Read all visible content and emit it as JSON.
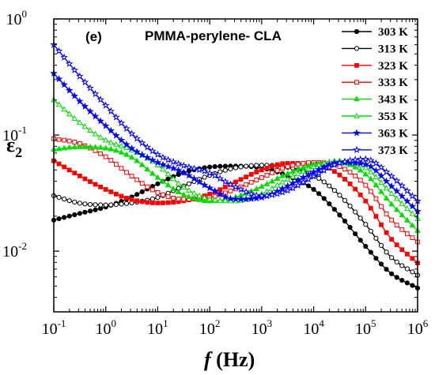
{
  "chart_data": {
    "type": "line",
    "panel_label": "(e)",
    "title": "PMMA-perylene- CLA",
    "xlabel_italic": "f",
    "xlabel_unit": " (Hz)",
    "ylabel_symbol": "ε",
    "ylabel_subscript": "2",
    "xscale": "log",
    "yscale": "log",
    "xlim": [
      0.1,
      1000000
    ],
    "ylim": [
      0.003,
      1
    ],
    "x_ticks": [
      {
        "base": "10",
        "exp": "-1",
        "value": 0.1
      },
      {
        "base": "10",
        "exp": "0",
        "value": 1
      },
      {
        "base": "10",
        "exp": "1",
        "value": 10
      },
      {
        "base": "10",
        "exp": "2",
        "value": 100
      },
      {
        "base": "10",
        "exp": "3",
        "value": 1000
      },
      {
        "base": "10",
        "exp": "4",
        "value": 10000
      },
      {
        "base": "10",
        "exp": "5",
        "value": 100000
      },
      {
        "base": "10",
        "exp": "6",
        "value": 1000000
      }
    ],
    "y_ticks": [
      {
        "base": "10",
        "exp": "-2",
        "value": 0.01
      },
      {
        "base": "10",
        "exp": "-1",
        "value": 0.1
      },
      {
        "base": "10",
        "exp": "0",
        "value": 1
      }
    ],
    "legend_position": "top-right",
    "grid": false,
    "series": [
      {
        "name": "303 K",
        "color": "#000000",
        "marker": "circle",
        "filled": true,
        "points": [
          [
            0.1,
            0.0185
          ],
          [
            0.3,
            0.021
          ],
          [
            1,
            0.024
          ],
          [
            3,
            0.029
          ],
          [
            10,
            0.038
          ],
          [
            30,
            0.047
          ],
          [
            100,
            0.053
          ],
          [
            300,
            0.054
          ],
          [
            1000,
            0.052
          ],
          [
            3000,
            0.045
          ],
          [
            10000,
            0.034
          ],
          [
            30000,
            0.021
          ],
          [
            100000,
            0.011
          ],
          [
            300000,
            0.0065
          ],
          [
            1000000,
            0.0048
          ]
        ]
      },
      {
        "name": "313 K",
        "color": "#000000",
        "marker": "circle",
        "filled": false,
        "points": [
          [
            0.1,
            0.03
          ],
          [
            0.3,
            0.026
          ],
          [
            1,
            0.025
          ],
          [
            3,
            0.026
          ],
          [
            10,
            0.029
          ],
          [
            30,
            0.036
          ],
          [
            100,
            0.045
          ],
          [
            300,
            0.052
          ],
          [
            1000,
            0.055
          ],
          [
            3000,
            0.053
          ],
          [
            10000,
            0.045
          ],
          [
            30000,
            0.031
          ],
          [
            100000,
            0.017
          ],
          [
            300000,
            0.009
          ],
          [
            1000000,
            0.0062
          ]
        ]
      },
      {
        "name": "323 K",
        "color": "#ff0000",
        "marker": "square",
        "filled": true,
        "points": [
          [
            0.1,
            0.06
          ],
          [
            0.3,
            0.045
          ],
          [
            1,
            0.034
          ],
          [
            3,
            0.028
          ],
          [
            10,
            0.026
          ],
          [
            30,
            0.027
          ],
          [
            100,
            0.031
          ],
          [
            300,
            0.039
          ],
          [
            1000,
            0.05
          ],
          [
            3000,
            0.057
          ],
          [
            10000,
            0.057
          ],
          [
            30000,
            0.046
          ],
          [
            100000,
            0.027
          ],
          [
            300000,
            0.013
          ],
          [
            1000000,
            0.0079
          ]
        ]
      },
      {
        "name": "333 K",
        "color": "#ff0000",
        "marker": "square",
        "filled": false,
        "points": [
          [
            0.1,
            0.093
          ],
          [
            0.3,
            0.085
          ],
          [
            1,
            0.065
          ],
          [
            3,
            0.045
          ],
          [
            10,
            0.032
          ],
          [
            30,
            0.028
          ],
          [
            100,
            0.029
          ],
          [
            300,
            0.034
          ],
          [
            1000,
            0.043
          ],
          [
            3000,
            0.053
          ],
          [
            10000,
            0.058
          ],
          [
            30000,
            0.054
          ],
          [
            100000,
            0.037
          ],
          [
            300000,
            0.019
          ],
          [
            1000000,
            0.012
          ]
        ]
      },
      {
        "name": "343 K",
        "color": "#00dd00",
        "marker": "triangle",
        "filled": true,
        "points": [
          [
            0.1,
            0.075
          ],
          [
            0.3,
            0.079
          ],
          [
            1,
            0.077
          ],
          [
            3,
            0.065
          ],
          [
            10,
            0.043
          ],
          [
            30,
            0.031
          ],
          [
            100,
            0.027
          ],
          [
            300,
            0.029
          ],
          [
            1000,
            0.036
          ],
          [
            3000,
            0.046
          ],
          [
            10000,
            0.056
          ],
          [
            30000,
            0.058
          ],
          [
            100000,
            0.046
          ],
          [
            300000,
            0.026
          ],
          [
            1000000,
            0.015
          ]
        ]
      },
      {
        "name": "353 K",
        "color": "#00dd00",
        "marker": "triangle",
        "filled": false,
        "points": [
          [
            0.1,
            0.2
          ],
          [
            0.3,
            0.13
          ],
          [
            1,
            0.09
          ],
          [
            3,
            0.075
          ],
          [
            10,
            0.055
          ],
          [
            30,
            0.036
          ],
          [
            100,
            0.028
          ],
          [
            300,
            0.027
          ],
          [
            1000,
            0.031
          ],
          [
            3000,
            0.041
          ],
          [
            10000,
            0.053
          ],
          [
            30000,
            0.06
          ],
          [
            100000,
            0.052
          ],
          [
            300000,
            0.032
          ],
          [
            1000000,
            0.019
          ]
        ]
      },
      {
        "name": "363 K",
        "color": "#0000ff",
        "marker": "star",
        "filled": true,
        "points": [
          [
            0.1,
            0.34
          ],
          [
            0.3,
            0.2
          ],
          [
            1,
            0.12
          ],
          [
            3,
            0.078
          ],
          [
            10,
            0.058
          ],
          [
            30,
            0.048
          ],
          [
            100,
            0.035
          ],
          [
            300,
            0.028
          ],
          [
            1000,
            0.029
          ],
          [
            3000,
            0.036
          ],
          [
            10000,
            0.048
          ],
          [
            30000,
            0.058
          ],
          [
            100000,
            0.056
          ],
          [
            300000,
            0.037
          ],
          [
            1000000,
            0.022
          ]
        ]
      },
      {
        "name": "373 K",
        "color": "#0000ff",
        "marker": "star",
        "filled": false,
        "points": [
          [
            0.1,
            0.6
          ],
          [
            0.3,
            0.33
          ],
          [
            1,
            0.18
          ],
          [
            3,
            0.105
          ],
          [
            10,
            0.068
          ],
          [
            30,
            0.055
          ],
          [
            100,
            0.047
          ],
          [
            300,
            0.036
          ],
          [
            1000,
            0.03
          ],
          [
            3000,
            0.033
          ],
          [
            10000,
            0.044
          ],
          [
            30000,
            0.057
          ],
          [
            100000,
            0.062
          ],
          [
            300000,
            0.045
          ],
          [
            1000000,
            0.027
          ]
        ]
      }
    ]
  }
}
